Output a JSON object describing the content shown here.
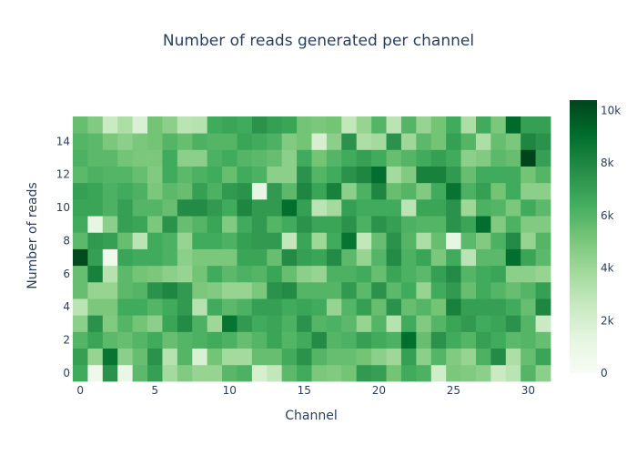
{
  "chart_data": {
    "type": "heatmap",
    "title": "Number of reads generated per channel",
    "xlabel": "Channel",
    "ylabel": "Number of reads",
    "x_range": [
      -0.5,
      31.5
    ],
    "y_range": [
      -0.5,
      15.5
    ],
    "x_ticks": [
      0,
      5,
      10,
      15,
      20,
      25,
      30
    ],
    "y_ticks": [
      0,
      2,
      4,
      6,
      8,
      10,
      12,
      14
    ],
    "colorbar": {
      "min": 0,
      "max": 10400,
      "ticks": [
        0,
        2000,
        4000,
        6000,
        8000,
        10000
      ],
      "tick_labels": [
        "0",
        "2k",
        "4k",
        "6k",
        "8k",
        "10k"
      ],
      "colorscale": [
        [
          0.0,
          "#f7fcf5"
        ],
        [
          0.125,
          "#e5f5e0"
        ],
        [
          0.25,
          "#c7e9c0"
        ],
        [
          0.375,
          "#a1d99b"
        ],
        [
          0.5,
          "#74c476"
        ],
        [
          0.625,
          "#41ab5d"
        ],
        [
          0.75,
          "#238b45"
        ],
        [
          0.875,
          "#006d2c"
        ],
        [
          1.0,
          "#00441b"
        ]
      ]
    },
    "grid": false,
    "values": [
      [
        6500,
        600,
        7500,
        900,
        5800,
        7000,
        3800,
        4800,
        4200,
        4200,
        5900,
        6200,
        2000,
        2800,
        5800,
        6500,
        5000,
        4800,
        5200,
        7200,
        7000,
        5200,
        6500,
        6200,
        2200,
        5000,
        4800,
        4500,
        2500,
        3000,
        6000,
        4500
      ],
      [
        7000,
        4200,
        8800,
        4500,
        5500,
        7500,
        3200,
        6000,
        1800,
        5200,
        3800,
        3800,
        5500,
        5500,
        6500,
        7500,
        6000,
        5500,
        5500,
        5200,
        4500,
        4000,
        7000,
        4500,
        6000,
        4800,
        4200,
        6200,
        7800,
        3500,
        5500,
        6800
      ],
      [
        6000,
        6800,
        5800,
        5500,
        6000,
        6500,
        5500,
        6000,
        6200,
        6500,
        6200,
        5500,
        6000,
        6800,
        6000,
        6500,
        7800,
        6000,
        6200,
        7000,
        6500,
        6200,
        9000,
        5500,
        7500,
        6500,
        6000,
        7000,
        6500,
        5800,
        6000,
        5500
      ],
      [
        4500,
        7500,
        4800,
        6000,
        5200,
        4500,
        6800,
        7800,
        6200,
        4000,
        8800,
        7200,
        6500,
        6800,
        6200,
        7500,
        6000,
        6200,
        5800,
        4200,
        6000,
        3200,
        6500,
        4800,
        6000,
        6800,
        7200,
        6500,
        6800,
        7500,
        6000,
        2500
      ],
      [
        3000,
        5000,
        5000,
        6500,
        6500,
        6000,
        6500,
        7200,
        3200,
        6500,
        5800,
        6200,
        7000,
        7000,
        6500,
        6800,
        6500,
        4200,
        6000,
        7000,
        5500,
        7500,
        5500,
        6000,
        5200,
        8200,
        7000,
        7000,
        7000,
        6500,
        5500,
        8000
      ],
      [
        5500,
        4200,
        4200,
        5800,
        6000,
        7500,
        8000,
        7200,
        5000,
        4800,
        4200,
        4200,
        5000,
        7500,
        7800,
        6000,
        6000,
        6000,
        7200,
        5800,
        7500,
        5800,
        6500,
        4200,
        6500,
        7200,
        5500,
        6500,
        6000,
        5500,
        6000,
        7000
      ],
      [
        5500,
        8200,
        3200,
        5800,
        5200,
        5000,
        4500,
        4200,
        5200,
        6500,
        5800,
        6200,
        6000,
        6800,
        5500,
        4500,
        4200,
        6200,
        6200,
        6500,
        5500,
        6800,
        6200,
        5800,
        7000,
        7800,
        6000,
        6500,
        6800,
        4500,
        4500,
        4200
      ],
      [
        10200,
        7000,
        500,
        6800,
        6500,
        6500,
        6200,
        4500,
        5000,
        5000,
        5000,
        6800,
        6800,
        5500,
        7800,
        7000,
        6800,
        7800,
        5800,
        4200,
        6000,
        7800,
        6200,
        6800,
        5000,
        6500,
        3000,
        5800,
        5800,
        9000,
        6800,
        5800
      ],
      [
        5800,
        7200,
        7000,
        5500,
        3000,
        6500,
        6200,
        4200,
        6500,
        6500,
        6200,
        7000,
        7200,
        7200,
        2800,
        6800,
        4000,
        6500,
        8800,
        2800,
        5500,
        7500,
        6000,
        3500,
        5500,
        1200,
        5800,
        4800,
        6200,
        7800,
        4200,
        6000
      ],
      [
        6500,
        1200,
        4500,
        7000,
        6800,
        5000,
        7500,
        5500,
        6000,
        6800,
        4800,
        6500,
        7200,
        6000,
        6500,
        7500,
        6800,
        6800,
        7500,
        6200,
        7500,
        7000,
        6200,
        6000,
        6000,
        7500,
        6800,
        9000,
        4800,
        6200,
        4800,
        4800
      ],
      [
        6800,
        6800,
        6200,
        7000,
        6000,
        6000,
        5500,
        7800,
        7800,
        7200,
        6500,
        8000,
        7200,
        7200,
        9000,
        7000,
        3000,
        3800,
        7000,
        6500,
        6500,
        6500,
        3000,
        6800,
        6800,
        7500,
        4000,
        6200,
        6000,
        5000,
        6500,
        5800
      ],
      [
        7000,
        6800,
        6200,
        6500,
        6200,
        5000,
        5800,
        5500,
        7000,
        6200,
        7200,
        7500,
        1200,
        7200,
        5800,
        8000,
        6800,
        8200,
        4500,
        6200,
        8000,
        5500,
        6000,
        4800,
        6500,
        8800,
        6200,
        7000,
        5200,
        6500,
        4500,
        4500
      ],
      [
        5800,
        6200,
        6000,
        6000,
        5500,
        4800,
        6500,
        5800,
        6200,
        6500,
        5500,
        6500,
        6200,
        4500,
        4500,
        7500,
        6000,
        6500,
        7500,
        8000,
        9000,
        3800,
        4800,
        8200,
        8200,
        7200,
        5500,
        6500,
        6500,
        6500,
        5200,
        6000
      ],
      [
        6200,
        5800,
        5800,
        5200,
        5000,
        5000,
        6500,
        4500,
        4500,
        6200,
        6500,
        6000,
        5800,
        5500,
        4500,
        6500,
        5200,
        6000,
        6500,
        7000,
        6500,
        5500,
        6000,
        6500,
        7000,
        6500,
        4500,
        4800,
        5800,
        5500,
        10400,
        7000
      ],
      [
        6000,
        5800,
        5000,
        4500,
        5000,
        5200,
        6000,
        5500,
        6200,
        6000,
        6000,
        6800,
        6500,
        6200,
        4800,
        5200,
        2000,
        4500,
        7500,
        3500,
        3800,
        7500,
        4000,
        5800,
        5200,
        7000,
        6000,
        3500,
        5500,
        5000,
        8000,
        7500
      ],
      [
        5500,
        4800,
        2500,
        3500,
        1800,
        5200,
        4500,
        3000,
        3200,
        6500,
        6800,
        6500,
        7500,
        7000,
        6800,
        5200,
        5000,
        5200,
        2800,
        4200,
        6000,
        3000,
        6000,
        4200,
        5200,
        6500,
        3500,
        6500,
        5000,
        9200,
        7000,
        7000
      ]
    ]
  }
}
